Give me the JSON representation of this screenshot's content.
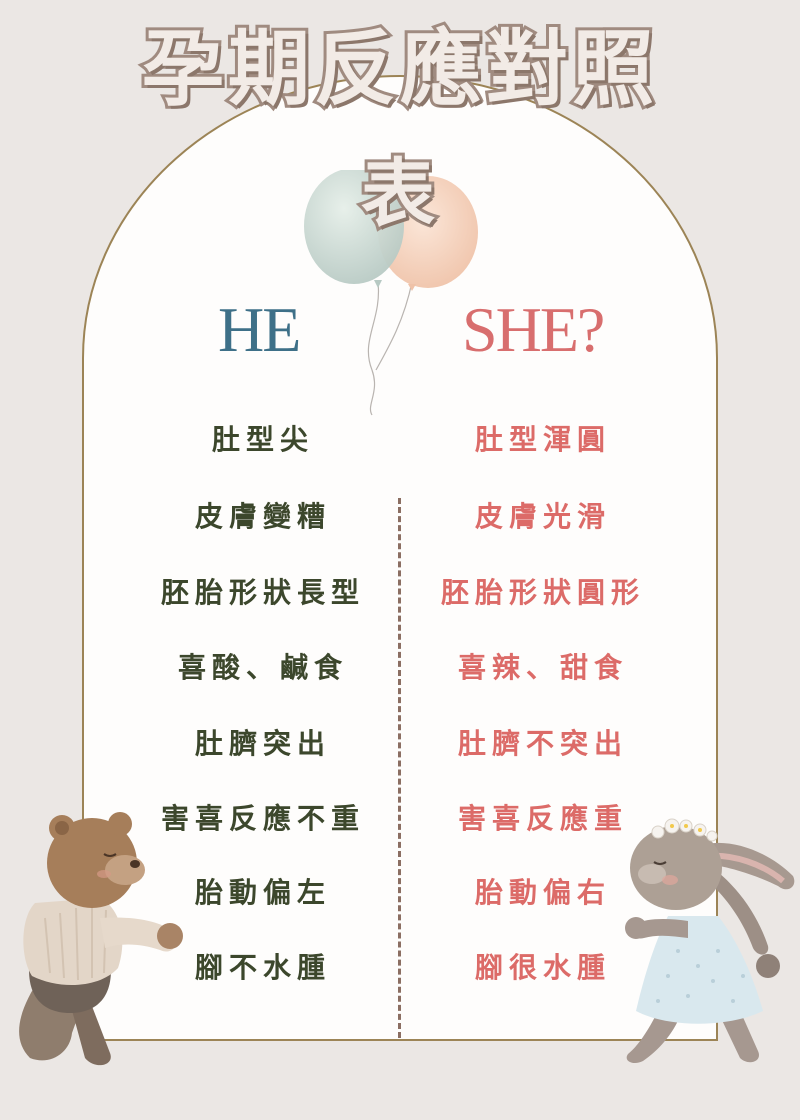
{
  "title": {
    "line1": "孕期反應對照",
    "line2": "表"
  },
  "headings": {
    "he": "HE",
    "she": "SHE?"
  },
  "rows": [
    {
      "he": "肚型尖",
      "she": "肚型渾圓"
    },
    {
      "he": "皮膚變糟",
      "she": "皮膚光滑"
    },
    {
      "he": "胚胎形狀長型",
      "she": "胚胎形狀圓形"
    },
    {
      "he": "喜酸、鹹食",
      "she": "喜辣、甜食"
    },
    {
      "he": "肚臍突出",
      "she": "肚臍不突出"
    },
    {
      "he": "害喜反應不重",
      "she": "害喜反應重"
    },
    {
      "he": "胎動偏左",
      "she": "胎動偏右"
    },
    {
      "he": "腳不水腫",
      "she": "腳很水腫"
    }
  ],
  "colors": {
    "background": "#ebe7e4",
    "card": "#fefdfc",
    "arch_border": "#9c8456",
    "he": "#3e7088",
    "she": "#d86e6e",
    "he_text": "#3c472c",
    "she_text": "#dc6b68",
    "divider": "#8b6e62"
  }
}
